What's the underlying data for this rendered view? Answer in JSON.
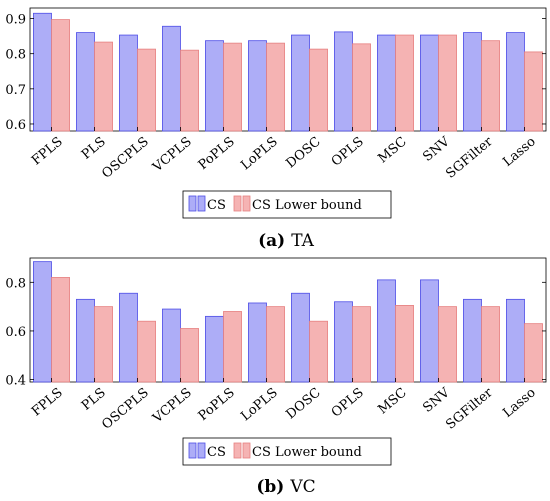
{
  "chart_data": [
    {
      "type": "bar",
      "panel_label": "(a)",
      "caption_text": "TA",
      "categories": [
        "FPLS",
        "PLS",
        "OSCPLS",
        "VCPLS",
        "PoPLS",
        "LoPLS",
        "DOSC",
        "OPLS",
        "MSC",
        "SNV",
        "SGFilter",
        "Lasso"
      ],
      "series": [
        {
          "name": "CS",
          "values": [
            0.915,
            0.86,
            0.853,
            0.878,
            0.837,
            0.837,
            0.853,
            0.862,
            0.853,
            0.853,
            0.86,
            0.86
          ]
        },
        {
          "name": "CS Lower bound",
          "values": [
            0.897,
            0.833,
            0.813,
            0.81,
            0.83,
            0.83,
            0.813,
            0.828,
            0.853,
            0.853,
            0.837,
            0.805
          ]
        }
      ],
      "yticks": [
        "0.6",
        "0.7",
        "0.8",
        "0.9"
      ],
      "ylim": [
        0.58,
        0.93
      ],
      "legend_position": "bottom-center",
      "colors": {
        "fill": [
          "#ADADF7",
          "#F5B3B3"
        ],
        "stroke": [
          "#4D4DE6",
          "#E68080"
        ]
      }
    },
    {
      "type": "bar",
      "panel_label": "(b)",
      "caption_text": "VC",
      "categories": [
        "FPLS",
        "PLS",
        "OSCPLS",
        "VCPLS",
        "PoPLS",
        "LoPLS",
        "DOSC",
        "OPLS",
        "MSC",
        "SNV",
        "SGFilter",
        "Lasso"
      ],
      "series": [
        {
          "name": "CS",
          "values": [
            0.885,
            0.73,
            0.755,
            0.69,
            0.66,
            0.715,
            0.755,
            0.72,
            0.81,
            0.81,
            0.73,
            0.73
          ]
        },
        {
          "name": "CS Lower bound",
          "values": [
            0.82,
            0.7,
            0.64,
            0.61,
            0.68,
            0.7,
            0.64,
            0.7,
            0.705,
            0.7,
            0.7,
            0.63
          ]
        }
      ],
      "yticks": [
        "0.4",
        "0.6",
        "0.8"
      ],
      "ylim": [
        0.39,
        0.9
      ],
      "legend_position": "bottom-center",
      "colors": {
        "fill": [
          "#ADADF7",
          "#F5B3B3"
        ],
        "stroke": [
          "#4D4DE6",
          "#E68080"
        ]
      }
    }
  ]
}
